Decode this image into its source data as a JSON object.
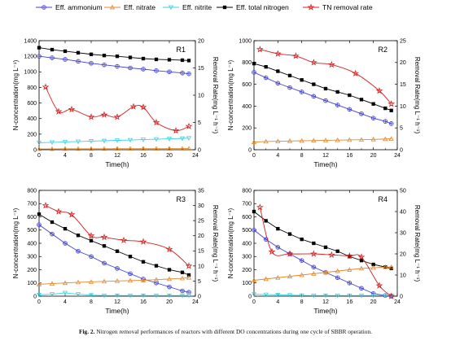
{
  "legend": {
    "items": [
      {
        "label": "Eff. ammonium",
        "color": "#4040d0",
        "marker": "circle-cross"
      },
      {
        "label": "Eff. nitrate",
        "color": "#e08a30",
        "marker": "triangle"
      },
      {
        "label": "Eff. nitrite",
        "color": "#40d0e0",
        "marker": "triangle-down"
      },
      {
        "label": "Eff. total nitrogen",
        "color": "#000000",
        "marker": "square"
      },
      {
        "label": "TN removal rate",
        "color": "#d42020",
        "marker": "star"
      }
    ]
  },
  "caption": {
    "label": "Fig. 2.",
    "text": "Nitrogen removal performances of reactors with different DO concentrations during one cycle of SBBR operation."
  },
  "chart_data": [
    {
      "type": "line",
      "panel": "R1",
      "xlabel": "Time(h)",
      "ylabel": "N-concentration(mg L⁻¹)",
      "y2label": "Removal Rate(mg L⁻¹ h⁻¹)",
      "xlim": [
        0,
        24
      ],
      "ylim": [
        0,
        1400
      ],
      "y2lim": [
        0,
        20
      ],
      "xticks": [
        "0",
        "4",
        "8",
        "12",
        "16",
        "20",
        "24"
      ],
      "yticks": [
        "0",
        "200",
        "400",
        "600",
        "800",
        "1000",
        "1200",
        "1400"
      ],
      "y2ticks": [
        "0",
        "5",
        "10",
        "15",
        "20"
      ],
      "series": [
        {
          "name": "Eff. total nitrogen",
          "axis": "left",
          "x": [
            0,
            2,
            4,
            6,
            8,
            10,
            12,
            14,
            16,
            18,
            20,
            22,
            23
          ],
          "y": [
            1310,
            1285,
            1265,
            1245,
            1225,
            1210,
            1200,
            1185,
            1170,
            1160,
            1155,
            1150,
            1145
          ]
        },
        {
          "name": "Eff. ammonium",
          "axis": "left",
          "x": [
            0,
            2,
            4,
            6,
            8,
            10,
            12,
            14,
            16,
            18,
            20,
            22,
            23
          ],
          "y": [
            1200,
            1180,
            1160,
            1135,
            1110,
            1090,
            1070,
            1050,
            1035,
            1015,
            1000,
            985,
            975
          ]
        },
        {
          "name": "Eff. nitrite",
          "axis": "left",
          "x": [
            0,
            2,
            4,
            6,
            8,
            10,
            12,
            14,
            16,
            18,
            20,
            22,
            23
          ],
          "y": [
            90,
            95,
            100,
            105,
            110,
            115,
            120,
            125,
            130,
            135,
            140,
            145,
            150
          ]
        },
        {
          "name": "Eff. nitrate",
          "axis": "left",
          "x": [
            0,
            2,
            4,
            6,
            8,
            10,
            12,
            14,
            16,
            18,
            20,
            22,
            23
          ],
          "y": [
            10,
            10,
            12,
            12,
            12,
            12,
            14,
            14,
            14,
            14,
            14,
            15,
            15
          ]
        },
        {
          "name": "TN removal rate",
          "axis": "right",
          "x": [
            1,
            3,
            5,
            8,
            10,
            12,
            14.5,
            16,
            18,
            21,
            23
          ],
          "y": [
            11.5,
            7,
            7.4,
            6,
            6.4,
            6,
            7.9,
            7.8,
            5,
            3.5,
            4.3
          ]
        }
      ]
    },
    {
      "type": "line",
      "panel": "R2",
      "xlabel": "Time(h)",
      "ylabel": "N-concentration(mg L⁻¹)",
      "y2label": "Removal Rate(mg L⁻¹ h⁻¹)",
      "xlim": [
        0,
        24
      ],
      "ylim": [
        0,
        1000
      ],
      "y2lim": [
        0,
        25
      ],
      "xticks": [
        "0",
        "4",
        "8",
        "12",
        "16",
        "20",
        "24"
      ],
      "yticks": [
        "0",
        "200",
        "400",
        "600",
        "800",
        "1000"
      ],
      "y2ticks": [
        "0",
        "5",
        "10",
        "15",
        "20",
        "25"
      ],
      "series": [
        {
          "name": "Eff. total nitrogen",
          "axis": "left",
          "x": [
            0,
            2,
            4,
            6,
            8,
            10,
            12,
            14,
            16,
            18,
            20,
            22,
            23
          ],
          "y": [
            790,
            760,
            720,
            680,
            640,
            600,
            560,
            530,
            500,
            460,
            420,
            380,
            360
          ]
        },
        {
          "name": "Eff. ammonium",
          "axis": "left",
          "x": [
            0,
            2,
            4,
            6,
            8,
            10,
            12,
            14,
            16,
            18,
            20,
            22,
            23
          ],
          "y": [
            710,
            660,
            610,
            570,
            530,
            490,
            450,
            410,
            370,
            330,
            290,
            260,
            240
          ]
        },
        {
          "name": "Eff. nitrate",
          "axis": "left",
          "x": [
            0,
            2,
            4,
            6,
            8,
            10,
            12,
            14,
            16,
            18,
            20,
            22,
            23
          ],
          "y": [
            70,
            75,
            78,
            80,
            82,
            84,
            86,
            88,
            90,
            92,
            95,
            98,
            100
          ]
        },
        {
          "name": "TN removal rate",
          "axis": "right",
          "x": [
            1,
            4,
            7,
            10,
            13,
            17,
            21,
            23
          ],
          "y": [
            23,
            22,
            21.5,
            20,
            19.5,
            17.5,
            13.5,
            10.5
          ]
        }
      ]
    },
    {
      "type": "line",
      "panel": "R3",
      "xlabel": "Time(h)",
      "ylabel": "N-concentration(mg L⁻¹)",
      "y2label": "Removal Rate(mg L⁻¹ h⁻¹)",
      "xlim": [
        0,
        24
      ],
      "ylim": [
        0,
        800
      ],
      "y2lim": [
        0,
        35
      ],
      "xticks": [
        "0",
        "4",
        "8",
        "12",
        "16",
        "20",
        "24"
      ],
      "yticks": [
        "0",
        "100",
        "200",
        "300",
        "400",
        "500",
        "600",
        "700",
        "800"
      ],
      "y2ticks": [
        "0",
        "5",
        "10",
        "15",
        "20",
        "25",
        "30",
        "35"
      ],
      "series": [
        {
          "name": "Eff. total nitrogen",
          "axis": "left",
          "x": [
            0,
            2,
            4,
            6,
            8,
            10,
            12,
            14,
            16,
            18,
            20,
            22,
            23
          ],
          "y": [
            620,
            560,
            510,
            460,
            420,
            380,
            340,
            300,
            260,
            230,
            200,
            180,
            160
          ]
        },
        {
          "name": "Eff. ammonium",
          "axis": "left",
          "x": [
            0,
            2,
            4,
            6,
            8,
            10,
            12,
            14,
            16,
            18,
            20,
            22,
            23
          ],
          "y": [
            540,
            470,
            400,
            340,
            300,
            250,
            210,
            170,
            130,
            100,
            70,
            40,
            30
          ]
        },
        {
          "name": "Eff. nitrate",
          "axis": "left",
          "x": [
            0,
            2,
            4,
            6,
            8,
            10,
            12,
            14,
            16,
            18,
            20,
            22,
            23
          ],
          "y": [
            90,
            95,
            100,
            105,
            108,
            112,
            115,
            118,
            120,
            125,
            130,
            135,
            140
          ]
        },
        {
          "name": "Eff. nitrite",
          "axis": "left",
          "x": [
            0,
            2,
            4,
            6,
            8,
            10,
            12,
            14,
            16,
            18,
            20,
            22,
            23
          ],
          "y": [
            10,
            15,
            25,
            15,
            8,
            5,
            5,
            5,
            5,
            5,
            5,
            5,
            5
          ]
        },
        {
          "name": "TN removal rate",
          "axis": "right",
          "x": [
            1,
            3,
            5,
            8,
            10,
            13,
            16,
            20,
            23
          ],
          "y": [
            30,
            28,
            27,
            20,
            19.5,
            18.5,
            18,
            15.5,
            10
          ]
        }
      ]
    },
    {
      "type": "line",
      "panel": "R4",
      "xlabel": "Time(h)",
      "ylabel": "N-concentration(mg L⁻¹)",
      "y2label": "Removal Rate(mg L⁻¹ h⁻¹)",
      "xlim": [
        0,
        24
      ],
      "ylim": [
        0,
        800
      ],
      "y2lim": [
        0,
        50
      ],
      "xticks": [
        "0",
        "4",
        "8",
        "12",
        "16",
        "20",
        "24"
      ],
      "yticks": [
        "0",
        "100",
        "200",
        "300",
        "400",
        "500",
        "600",
        "700",
        "800"
      ],
      "y2ticks": [
        "0",
        "10",
        "20",
        "30",
        "40",
        "50"
      ],
      "series": [
        {
          "name": "Eff. total nitrogen",
          "axis": "left",
          "x": [
            0,
            2,
            4,
            6,
            8,
            10,
            12,
            14,
            16,
            18,
            20,
            22,
            23
          ],
          "y": [
            640,
            570,
            510,
            470,
            430,
            400,
            370,
            340,
            300,
            270,
            240,
            220,
            210
          ]
        },
        {
          "name": "Eff. ammonium",
          "axis": "left",
          "x": [
            0,
            2,
            4,
            6,
            8,
            10,
            12,
            14,
            16,
            18,
            20,
            22,
            23
          ],
          "y": [
            500,
            430,
            370,
            320,
            270,
            220,
            180,
            140,
            100,
            60,
            20,
            5,
            0
          ]
        },
        {
          "name": "Eff. nitrate",
          "axis": "left",
          "x": [
            0,
            2,
            4,
            6,
            8,
            10,
            12,
            14,
            16,
            18,
            20,
            22,
            23
          ],
          "y": [
            120,
            130,
            140,
            150,
            160,
            170,
            180,
            190,
            200,
            210,
            215,
            220,
            220
          ]
        },
        {
          "name": "Eff. nitrite",
          "axis": "left",
          "x": [
            0,
            2,
            4,
            6,
            8,
            10,
            12,
            14,
            16,
            18,
            20,
            22,
            23
          ],
          "y": [
            15,
            12,
            10,
            8,
            6,
            5,
            5,
            5,
            5,
            5,
            5,
            5,
            5
          ]
        },
        {
          "name": "TN removal rate",
          "axis": "right",
          "x": [
            1,
            3,
            6,
            10,
            13,
            16,
            18,
            21,
            23
          ],
          "y": [
            42,
            21,
            20,
            20,
            19.5,
            19,
            18.5,
            5,
            0
          ]
        }
      ]
    }
  ]
}
